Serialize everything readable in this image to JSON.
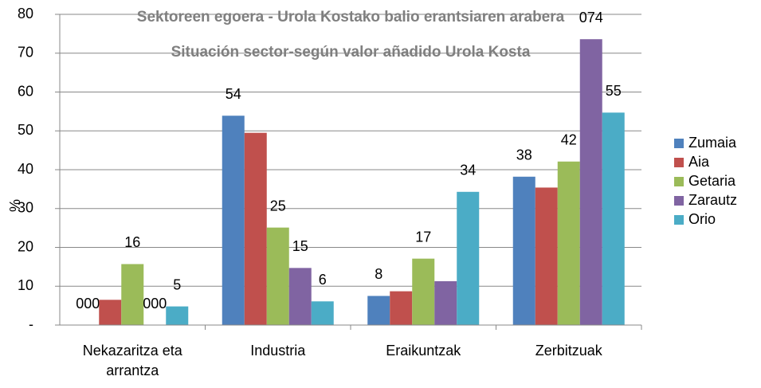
{
  "chart_data": {
    "type": "bar",
    "title": "Sektoreen egoera - Urola Kostako balio erantsiaren arabera",
    "subtitle": "Situación sector-según valor añadido Urola Kosta",
    "y_label": "%",
    "categories": [
      "Nekazaritza eta arrantza",
      "Industria",
      "Eraikuntzak",
      "Zerbitzuak"
    ],
    "series": [
      {
        "name": "Zumaia",
        "color": "#4f81bd",
        "values": [
          0,
          53.9,
          7.5,
          38.2
        ],
        "value_labels": [
          "000",
          "54",
          "8",
          "38"
        ]
      },
      {
        "name": "Aia",
        "color": "#c0504d",
        "values": [
          6.5,
          49.5,
          8.7,
          35.4
        ],
        "value_labels": [
          null,
          null,
          null,
          null
        ]
      },
      {
        "name": "Getaria",
        "color": "#9bbb59",
        "values": [
          15.7,
          25.1,
          17.1,
          42.1
        ],
        "value_labels": [
          "16",
          "25",
          "17",
          "42"
        ]
      },
      {
        "name": "Zarautz",
        "color": "#8064a2",
        "values": [
          0,
          14.7,
          11.3,
          73.6
        ],
        "value_labels": [
          "000",
          "15",
          null,
          "074"
        ]
      },
      {
        "name": "Orio",
        "color": "#4bacc6",
        "values": [
          4.8,
          6.1,
          34.3,
          54.7
        ],
        "value_labels": [
          "5",
          "6",
          "34",
          "55"
        ]
      }
    ],
    "ylim": [
      0,
      80
    ],
    "yticks": [
      {
        "value": 0,
        "label": "-"
      },
      10,
      20,
      30,
      40,
      50,
      60,
      70,
      80
    ],
    "grid": true,
    "legend": "right"
  }
}
